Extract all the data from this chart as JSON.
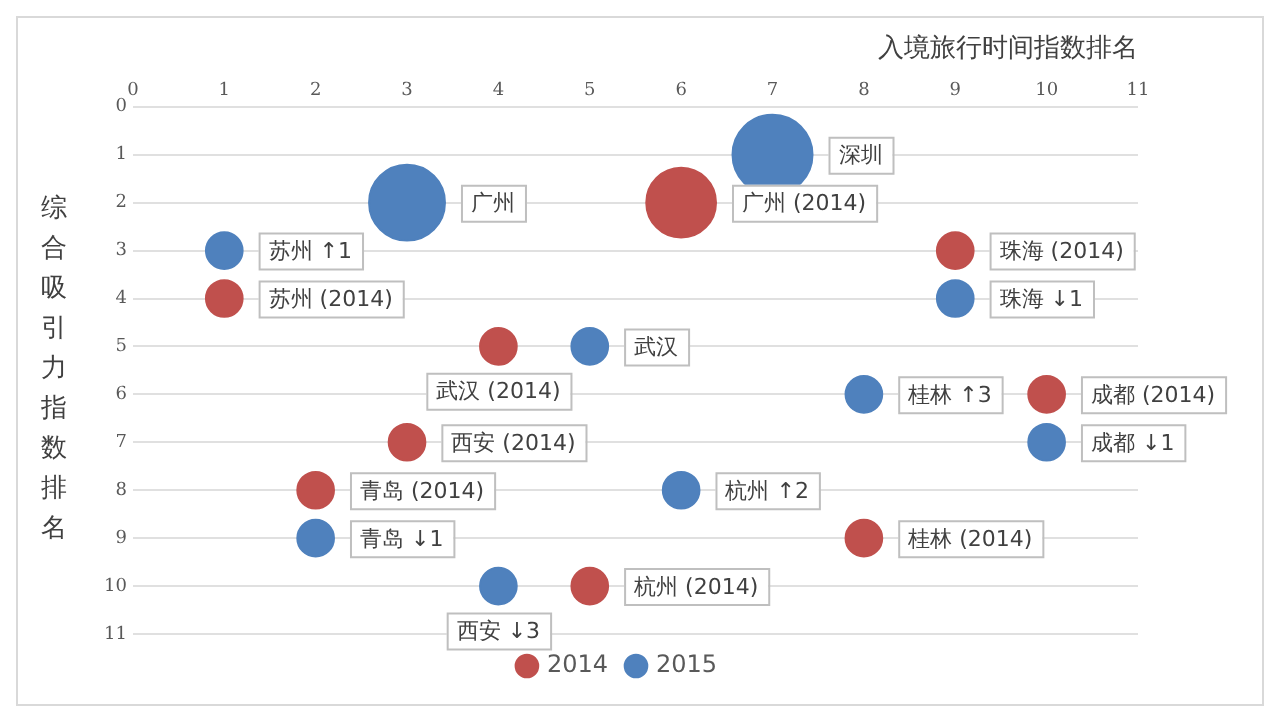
{
  "chart_data": {
    "type": "bubble",
    "xlabel": "入境旅行时间指数排名",
    "ylabel": "综合吸引力指数排名",
    "xlim": [
      0,
      11
    ],
    "xticks": [
      0,
      1,
      2,
      3,
      4,
      5,
      6,
      7,
      8,
      9,
      10,
      11
    ],
    "ylim": [
      11,
      0
    ],
    "yticks": [
      0,
      1,
      2,
      3,
      4,
      5,
      6,
      7,
      8,
      9,
      10,
      11
    ],
    "grid": "y",
    "legend": "bottom",
    "series": [
      {
        "name": "2014",
        "color": "#c0504d",
        "x": [
          6,
          1,
          9,
          4,
          10,
          3,
          2,
          8,
          5
        ],
        "values": [
          2,
          4,
          3,
          5,
          6,
          7,
          8,
          9,
          10
        ],
        "sizes": [
          0.76,
          0.21,
          0.21,
          0.21,
          0.21,
          0.21,
          0.21,
          0.21,
          0.21
        ]
      },
      {
        "name": "2015",
        "color": "#4f81bd",
        "x": [
          7,
          3,
          1,
          9,
          5,
          8,
          10,
          6,
          2,
          4
        ],
        "values": [
          1,
          2,
          3,
          4,
          5,
          6,
          7,
          8,
          9,
          10
        ],
        "sizes": [
          1,
          0.9,
          0.21,
          0.21,
          0.21,
          0.21,
          0.21,
          0.21,
          0.21,
          0.21
        ]
      }
    ],
    "annotations": [
      {
        "text": "广州 (2014)",
        "x": 6,
        "y": 2
      },
      {
        "text": "苏州 (2014)",
        "x": 1,
        "y": 4
      },
      {
        "text": "珠海 (2014)",
        "x": 9,
        "y": 3
      },
      {
        "text": "武汉 (2014)",
        "x": 4,
        "y": 5
      },
      {
        "text": "成都 (2014)",
        "x": 10,
        "y": 6
      },
      {
        "text": "西安 (2014)",
        "x": 3,
        "y": 7
      },
      {
        "text": "青岛 (2014)",
        "x": 2,
        "y": 8
      },
      {
        "text": "桂林 (2014)",
        "x": 8,
        "y": 9
      },
      {
        "text": "杭州 (2014)",
        "x": 5,
        "y": 10
      },
      {
        "text": "深圳",
        "x": 7,
        "y": 1
      },
      {
        "text": "广州",
        "x": 3,
        "y": 2
      },
      {
        "text": "苏州 ↑1",
        "x": 1,
        "y": 3
      },
      {
        "text": "珠海 ↓1",
        "x": 9,
        "y": 4
      },
      {
        "text": "武汉",
        "x": 5,
        "y": 5
      },
      {
        "text": "桂林 ↑3",
        "x": 8,
        "y": 6
      },
      {
        "text": "成都 ↓1",
        "x": 10,
        "y": 7
      },
      {
        "text": "杭州 ↑2",
        "x": 6,
        "y": 8
      },
      {
        "text": "青岛 ↓1",
        "x": 2,
        "y": 9
      },
      {
        "text": "西安 ↓3",
        "x": 4,
        "y": 10
      }
    ]
  }
}
